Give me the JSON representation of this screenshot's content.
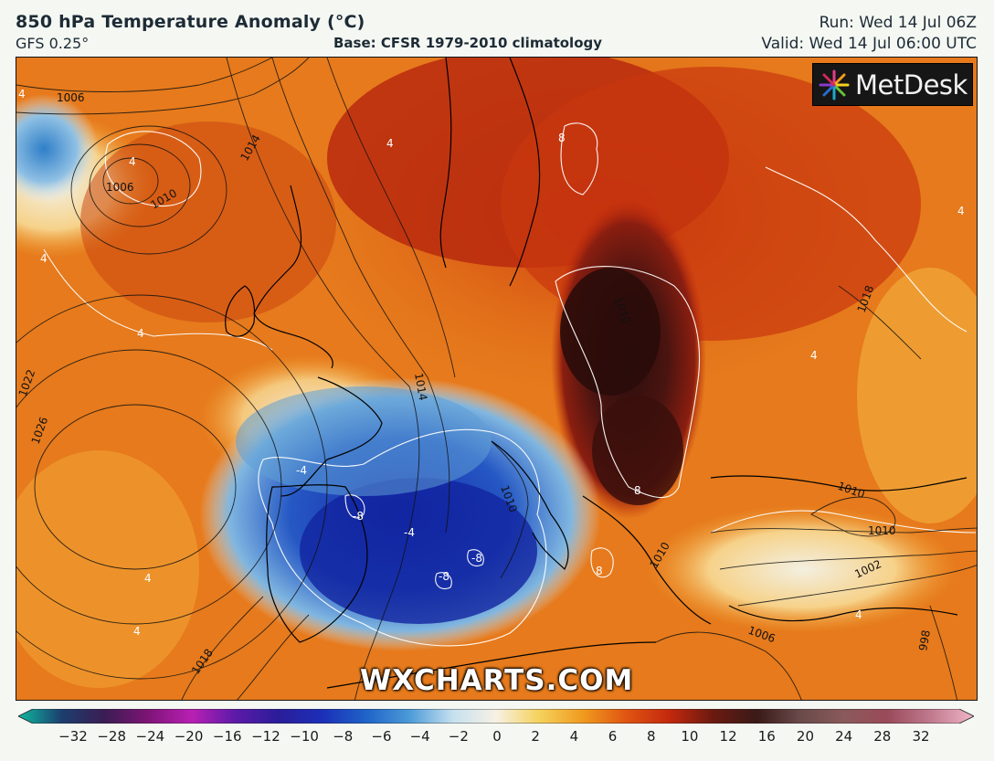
{
  "header": {
    "title": "850 hPa Temperature Anomaly (°C)",
    "model": "GFS 0.25°",
    "base": "Base: CFSR 1979-2010 climatology",
    "run": "Run: Wed 14 Jul 06Z",
    "valid": "Valid: Wed 14 Jul 06:00 UTC"
  },
  "logo": {
    "text": "MetDesk",
    "icon": "starburst-logo-icon"
  },
  "watermark": "WXCHARTS.COM",
  "map": {
    "isobar_labels": [
      "1006",
      "1014",
      "1006",
      "1010",
      "1022",
      "1026",
      "1018",
      "1014",
      "1010",
      "1010",
      "1010",
      "1018",
      "1010",
      "1010",
      "1002",
      "1006",
      "998"
    ],
    "anomaly_labels": [
      "4",
      "4",
      "4",
      "4",
      "4",
      "4",
      "-4",
      "-8",
      "-4",
      "-8",
      "-8",
      "8",
      "8",
      "4",
      "4",
      "4",
      "4",
      "8"
    ]
  },
  "colorbar": {
    "ticks": [
      "−32",
      "−28",
      "−24",
      "−20",
      "−16",
      "−12",
      "−10",
      "−8",
      "−6",
      "−4",
      "−2",
      "0",
      "2",
      "4",
      "6",
      "8",
      "10",
      "12",
      "16",
      "20",
      "24",
      "28",
      "32"
    ],
    "colors": [
      "#0fb9a0",
      "#1b3f6e",
      "#3a1d52",
      "#7e1476",
      "#b820b4",
      "#5c1aa8",
      "#2a1d9a",
      "#1c2fb8",
      "#1f63c8",
      "#4b9ad8",
      "#c6e0ef",
      "#f7f1e4",
      "#f5d25c",
      "#f09a1f",
      "#e05512",
      "#c2280d",
      "#6b1a10",
      "#3a1a18",
      "#6a4a4a",
      "#8a5a5a",
      "#9a4a5a",
      "#c07a8e",
      "#f0b6c6"
    ]
  }
}
